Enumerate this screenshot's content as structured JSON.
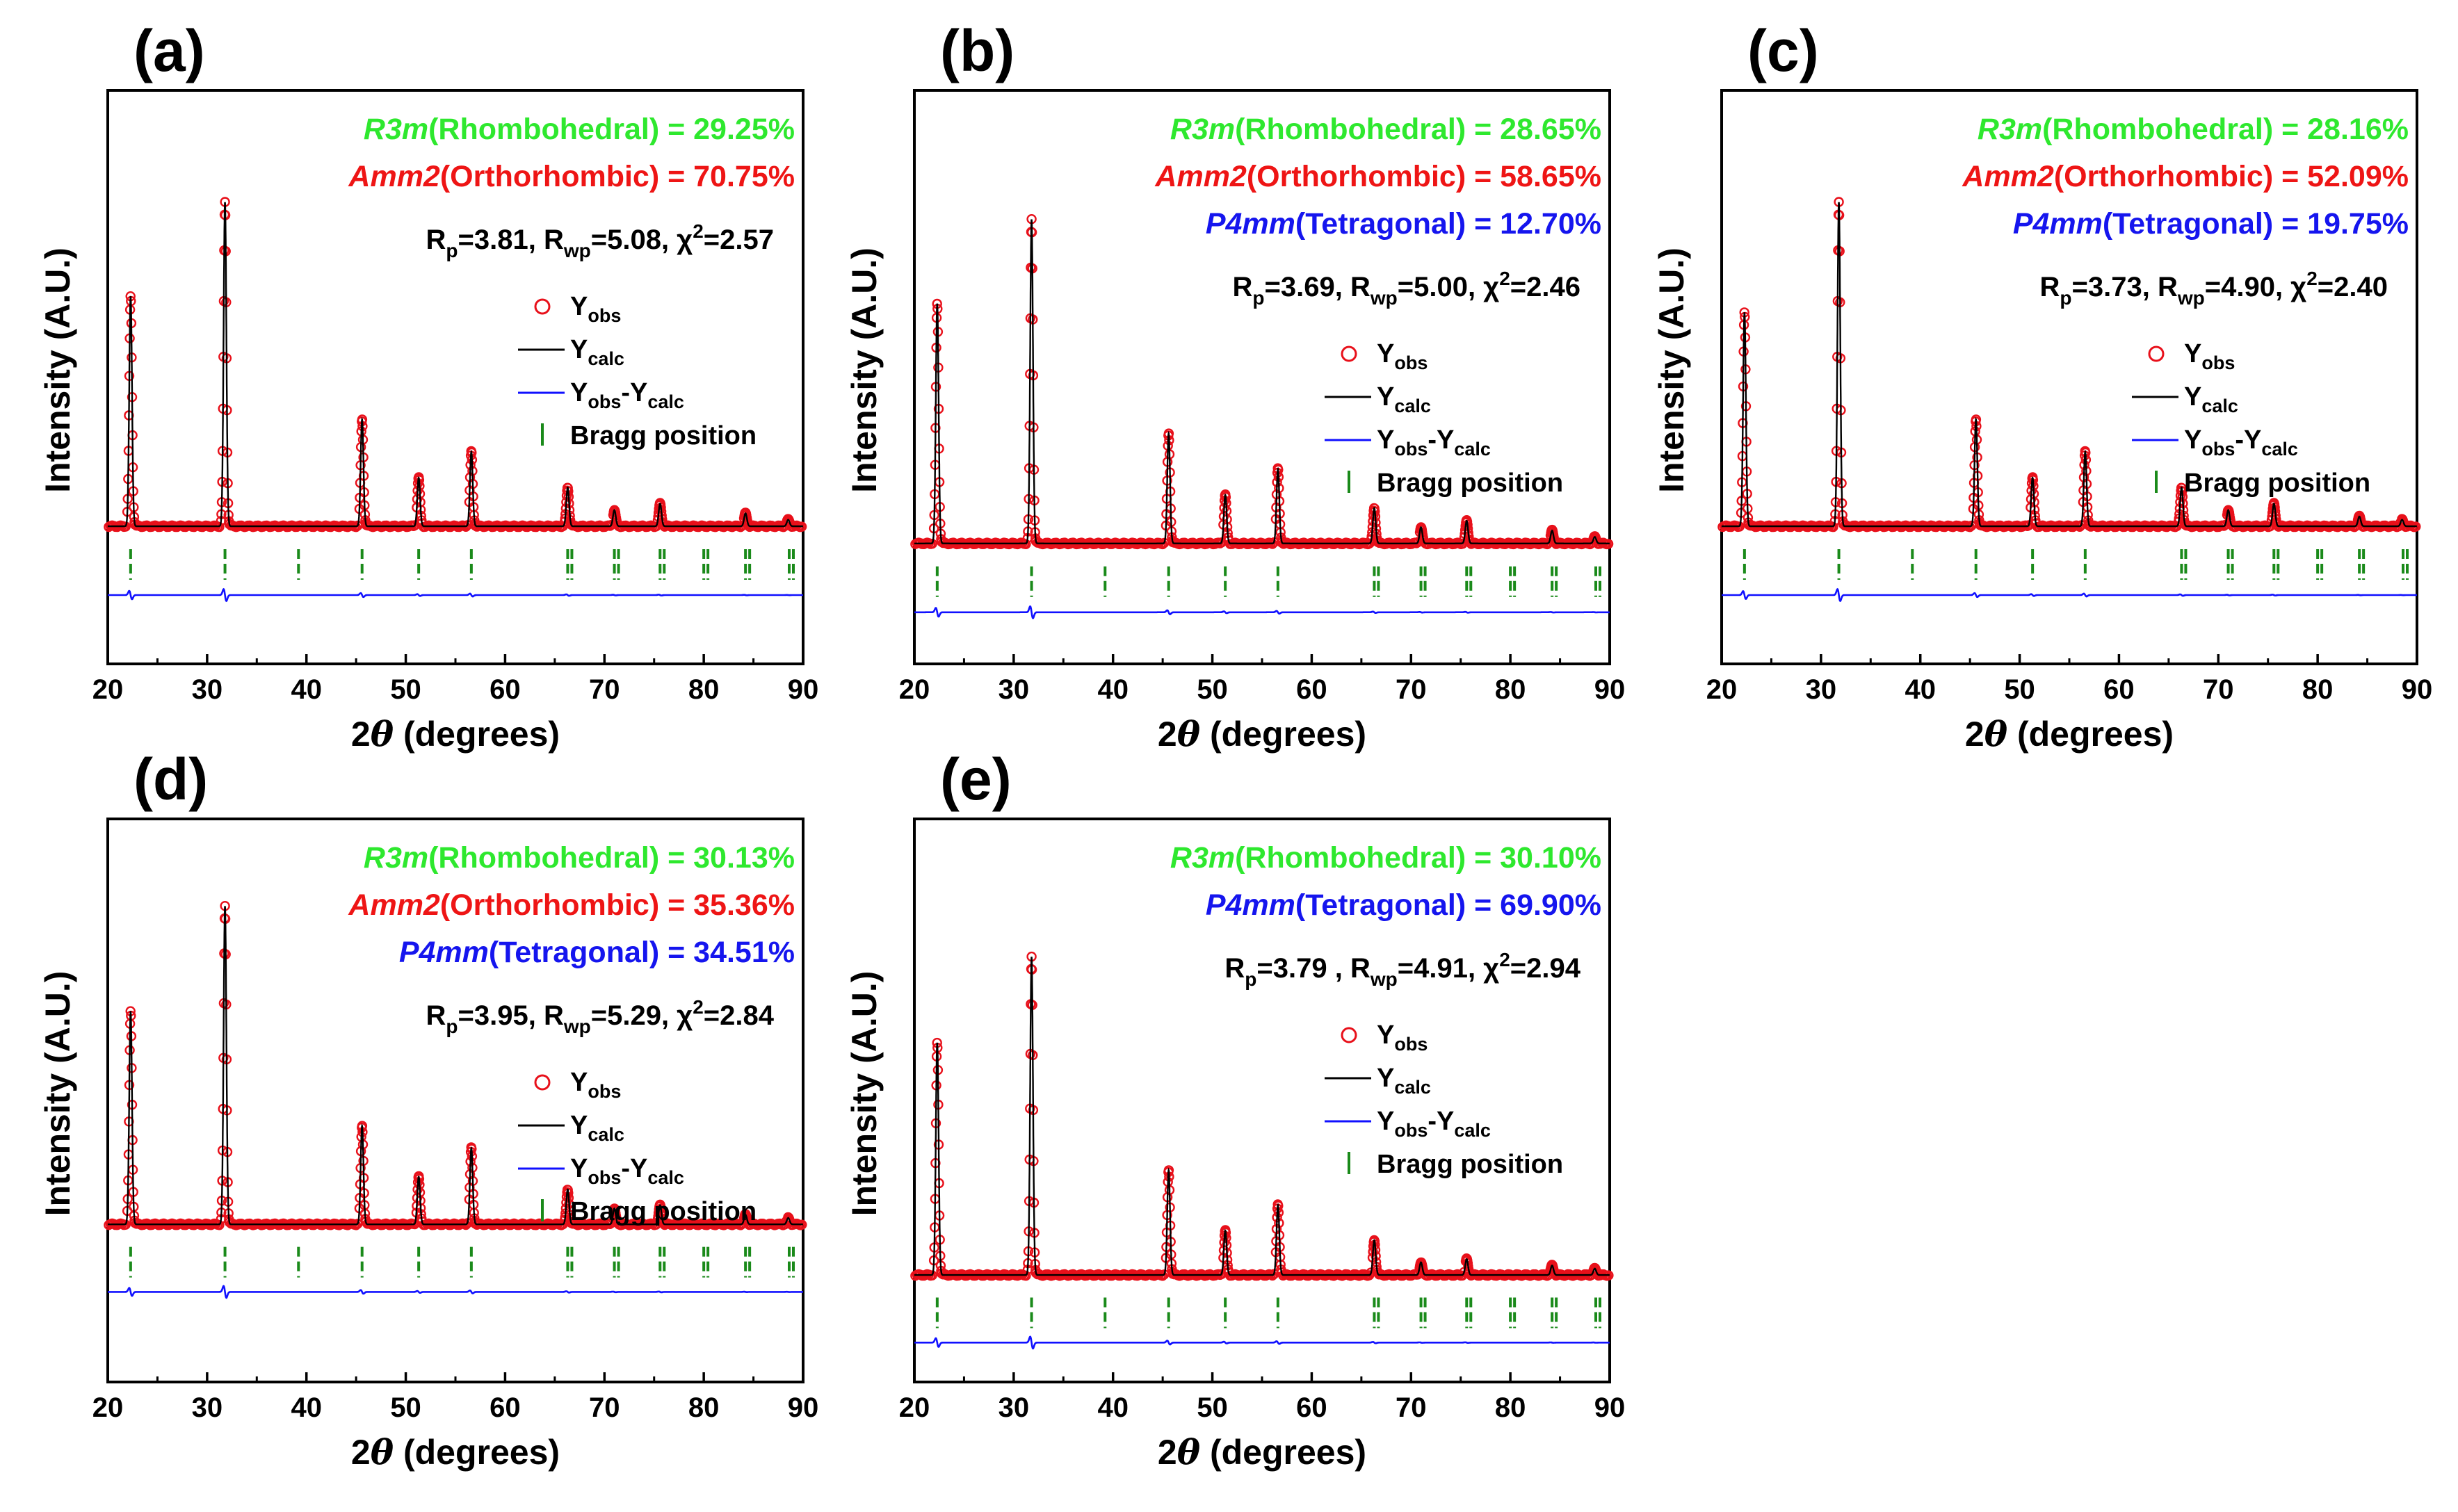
{
  "figure": {
    "x_axis_title_var": "2θ",
    "x_axis_title_unit": "(degrees)",
    "y_axis_title": "Intensity (A.U.)"
  },
  "legend": {
    "obs": {
      "base": "Y",
      "sub": "obs"
    },
    "calc": {
      "base": "Y",
      "sub": "calc"
    },
    "diff": {
      "base1": "Y",
      "sub1": "obs",
      "dash": "-",
      "base2": "Y",
      "sub2": "calc"
    },
    "bragg": "Bragg position"
  },
  "colors": {
    "observed": "#e8101a",
    "calculated": "#000000",
    "difference": "#1010ff",
    "bragg": "#1a8a1a",
    "rhombohedral": "#2ee82e",
    "orthorhombic": "#ee1515",
    "tetragonal": "#1515ee"
  },
  "chart_data": [
    {
      "panel": "(a)",
      "type": "line",
      "xlabel": "2θ (degrees)",
      "ylabel": "Intensity (A.U.)",
      "xlim": [
        20,
        90
      ],
      "xticks": [
        20,
        30,
        40,
        50,
        60,
        70,
        80,
        90
      ],
      "phases": [
        {
          "name": "R3m",
          "system": "(Rhombohedral)",
          "fraction": "29.25%",
          "color_key": "rhombohedral"
        },
        {
          "name": "Amm2",
          "system": "(Orthorhombic)",
          "fraction": "70.75%",
          "color_key": "orthorhombic"
        }
      ],
      "stats": {
        "Rp": "3.81",
        "Rwp": "5.08",
        "chi2": "2.57"
      },
      "peaks": [
        {
          "two_theta": 22.3,
          "rel_intensity": 0.71
        },
        {
          "two_theta": 31.8,
          "rel_intensity": 1.0
        },
        {
          "two_theta": 45.6,
          "rel_intensity": 0.33
        },
        {
          "two_theta": 51.3,
          "rel_intensity": 0.15
        },
        {
          "two_theta": 56.6,
          "rel_intensity": 0.23
        },
        {
          "two_theta": 66.3,
          "rel_intensity": 0.12
        },
        {
          "two_theta": 71.0,
          "rel_intensity": 0.05
        },
        {
          "two_theta": 75.6,
          "rel_intensity": 0.07
        },
        {
          "two_theta": 84.2,
          "rel_intensity": 0.04
        },
        {
          "two_theta": 88.5,
          "rel_intensity": 0.02
        }
      ],
      "bragg_positions": [
        22.3,
        31.8,
        39.2,
        45.6,
        51.3,
        56.6,
        66.3,
        71.0,
        75.6,
        80.0,
        84.2,
        88.6
      ]
    },
    {
      "panel": "(b)",
      "type": "line",
      "xlabel": "2θ (degrees)",
      "ylabel": "Intensity (A.U.)",
      "xlim": [
        20,
        90
      ],
      "xticks": [
        20,
        30,
        40,
        50,
        60,
        70,
        80,
        90
      ],
      "phases": [
        {
          "name": "R3m",
          "system": "(Rhombohedral)",
          "fraction": "28.65%",
          "color_key": "rhombohedral"
        },
        {
          "name": "Amm2",
          "system": "(Orthorhombic)",
          "fraction": "58.65%",
          "color_key": "orthorhombic"
        },
        {
          "name": "P4mm",
          "system": "(Tetragonal)",
          "fraction": "12.70%",
          "color_key": "tetragonal"
        }
      ],
      "stats": {
        "Rp": "3.69",
        "Rwp": "5.00",
        "chi2": "2.46"
      },
      "peaks": [
        {
          "two_theta": 22.3,
          "rel_intensity": 0.74
        },
        {
          "two_theta": 31.8,
          "rel_intensity": 1.0
        },
        {
          "two_theta": 45.6,
          "rel_intensity": 0.34
        },
        {
          "two_theta": 51.3,
          "rel_intensity": 0.15
        },
        {
          "two_theta": 56.6,
          "rel_intensity": 0.23
        },
        {
          "two_theta": 66.3,
          "rel_intensity": 0.11
        },
        {
          "two_theta": 71.0,
          "rel_intensity": 0.05
        },
        {
          "two_theta": 75.6,
          "rel_intensity": 0.07
        },
        {
          "two_theta": 84.2,
          "rel_intensity": 0.04
        },
        {
          "two_theta": 88.5,
          "rel_intensity": 0.02
        }
      ],
      "bragg_positions": [
        22.3,
        31.8,
        39.2,
        45.6,
        51.3,
        56.6,
        66.3,
        71.0,
        75.6,
        80.0,
        84.2,
        88.6
      ]
    },
    {
      "panel": "(c)",
      "type": "line",
      "xlabel": "2θ (degrees)",
      "ylabel": "Intensity (A.U.)",
      "xlim": [
        20,
        90
      ],
      "xticks": [
        20,
        30,
        40,
        50,
        60,
        70,
        80,
        90
      ],
      "phases": [
        {
          "name": "R3m",
          "system": "(Rhombohedral)",
          "fraction": "28.16%",
          "color_key": "rhombohedral"
        },
        {
          "name": "Amm2",
          "system": "(Orthorhombic)",
          "fraction": "52.09%",
          "color_key": "orthorhombic"
        },
        {
          "name": "P4mm",
          "system": "(Tetragonal)",
          "fraction": "19.75%",
          "color_key": "tetragonal"
        }
      ],
      "stats": {
        "Rp": "3.73",
        "Rwp": "4.90",
        "chi2": "2.40"
      },
      "peaks": [
        {
          "two_theta": 22.3,
          "rel_intensity": 0.66
        },
        {
          "two_theta": 31.8,
          "rel_intensity": 1.0
        },
        {
          "two_theta": 45.6,
          "rel_intensity": 0.33
        },
        {
          "two_theta": 51.3,
          "rel_intensity": 0.15
        },
        {
          "two_theta": 56.6,
          "rel_intensity": 0.23
        },
        {
          "two_theta": 66.3,
          "rel_intensity": 0.12
        },
        {
          "two_theta": 71.0,
          "rel_intensity": 0.05
        },
        {
          "two_theta": 75.6,
          "rel_intensity": 0.07
        },
        {
          "two_theta": 84.2,
          "rel_intensity": 0.03
        },
        {
          "two_theta": 88.5,
          "rel_intensity": 0.02
        }
      ],
      "bragg_positions": [
        22.3,
        31.8,
        39.2,
        45.6,
        51.3,
        56.6,
        66.3,
        71.0,
        75.6,
        80.0,
        84.2,
        88.6
      ]
    },
    {
      "panel": "(d)",
      "type": "line",
      "xlabel": "2θ (degrees)",
      "ylabel": "Intensity (A.U.)",
      "xlim": [
        20,
        90
      ],
      "xticks": [
        20,
        30,
        40,
        50,
        60,
        70,
        80,
        90
      ],
      "phases": [
        {
          "name": "R3m",
          "system": "(Rhombohedral)",
          "fraction": "30.13%",
          "color_key": "rhombohedral"
        },
        {
          "name": "Amm2",
          "system": "(Orthorhombic)",
          "fraction": "35.36%",
          "color_key": "orthorhombic"
        },
        {
          "name": "P4mm",
          "system": "(Tetragonal)",
          "fraction": "34.51%",
          "color_key": "tetragonal"
        }
      ],
      "stats": {
        "Rp": "3.95",
        "Rwp": "5.29",
        "chi2": "2.84"
      },
      "peaks": [
        {
          "two_theta": 22.3,
          "rel_intensity": 0.67
        },
        {
          "two_theta": 31.8,
          "rel_intensity": 1.0
        },
        {
          "two_theta": 45.6,
          "rel_intensity": 0.31
        },
        {
          "two_theta": 51.3,
          "rel_intensity": 0.15
        },
        {
          "two_theta": 56.6,
          "rel_intensity": 0.24
        },
        {
          "two_theta": 66.3,
          "rel_intensity": 0.11
        },
        {
          "two_theta": 71.0,
          "rel_intensity": 0.05
        },
        {
          "two_theta": 75.6,
          "rel_intensity": 0.06
        },
        {
          "two_theta": 84.2,
          "rel_intensity": 0.03
        },
        {
          "two_theta": 88.5,
          "rel_intensity": 0.02
        }
      ],
      "bragg_positions": [
        22.3,
        31.8,
        39.2,
        45.6,
        51.3,
        56.6,
        66.3,
        71.0,
        75.6,
        80.0,
        84.2,
        88.6
      ]
    },
    {
      "panel": "(e)",
      "type": "line",
      "xlabel": "2θ (degrees)",
      "ylabel": "Intensity (A.U.)",
      "xlim": [
        20,
        90
      ],
      "xticks": [
        20,
        30,
        40,
        50,
        60,
        70,
        80,
        90
      ],
      "phases": [
        {
          "name": "R3m",
          "system": "(Rhombohedral)",
          "fraction": "30.10%",
          "color_key": "rhombohedral"
        },
        {
          "name": "P4mm",
          "system": "(Tetragonal)",
          "fraction": "69.90%",
          "color_key": "tetragonal"
        }
      ],
      "stats": {
        "Rp": "3.79 ",
        "Rwp": "4.91",
        "chi2": "2.94"
      },
      "peaks": [
        {
          "two_theta": 22.3,
          "rel_intensity": 0.73
        },
        {
          "two_theta": 31.8,
          "rel_intensity": 1.0
        },
        {
          "two_theta": 45.6,
          "rel_intensity": 0.33
        },
        {
          "two_theta": 51.3,
          "rel_intensity": 0.14
        },
        {
          "two_theta": 56.6,
          "rel_intensity": 0.22
        },
        {
          "two_theta": 66.3,
          "rel_intensity": 0.11
        },
        {
          "two_theta": 71.0,
          "rel_intensity": 0.04
        },
        {
          "two_theta": 75.6,
          "rel_intensity": 0.05
        },
        {
          "two_theta": 84.2,
          "rel_intensity": 0.03
        },
        {
          "two_theta": 88.5,
          "rel_intensity": 0.02
        }
      ],
      "bragg_positions": [
        22.3,
        31.8,
        39.2,
        45.6,
        51.3,
        56.6,
        66.3,
        71.0,
        75.6,
        80.0,
        84.2,
        88.6
      ]
    }
  ]
}
